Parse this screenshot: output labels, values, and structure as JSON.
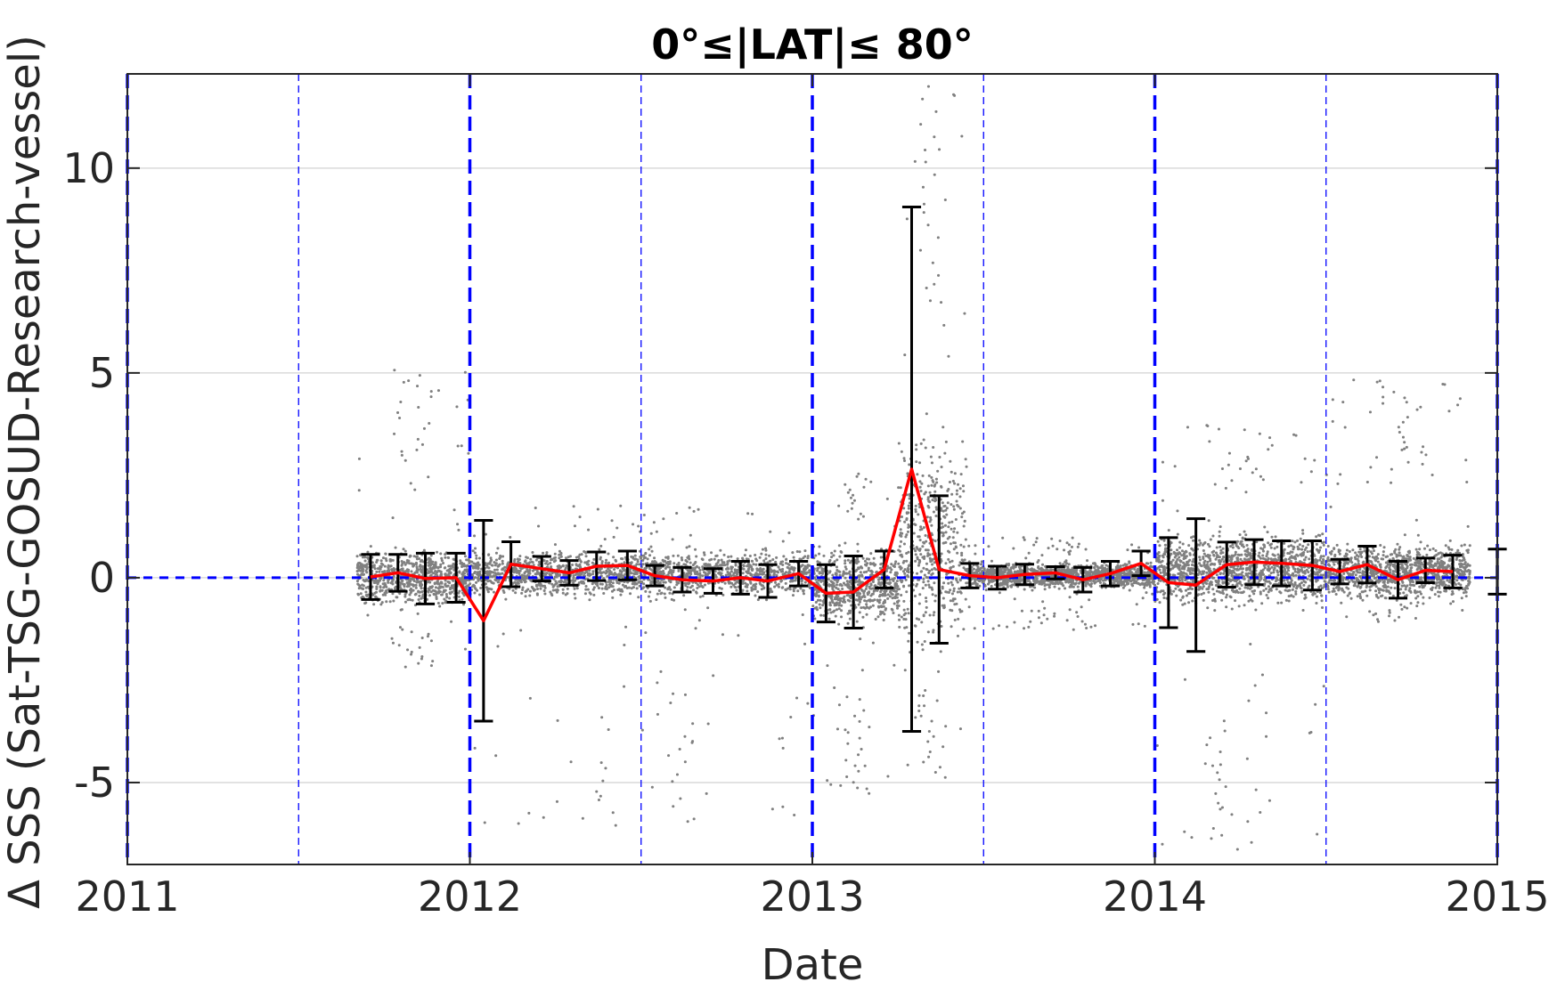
{
  "chart_data": {
    "type": "scatter",
    "title": "0°≤|LAT|≤ 80°",
    "xlabel": "Date",
    "ylabel": "Δ SSS (Sat-TSG-GOSUD-Research-vessel)",
    "xlim": [
      2011.0,
      2015.0
    ],
    "ylim": [
      -7.0,
      12.3
    ],
    "x_ticks": [
      2011,
      2012,
      2013,
      2014,
      2015
    ],
    "x_tick_labels": [
      "2011",
      "2012",
      "2013",
      "2014",
      "2015"
    ],
    "y_ticks": [
      -5,
      0,
      5,
      10
    ],
    "y_tick_labels": [
      "-5",
      "0",
      "5",
      "10"
    ],
    "grid": "horizontal",
    "zero_line": 0,
    "year_lines": [
      2011.0,
      2012.0,
      2013.0,
      2014.0,
      2015.0
    ],
    "half_year_lines": [
      2011.5,
      2012.5,
      2013.5,
      2014.5
    ],
    "colors": {
      "points": "#808080",
      "mean_line": "#ff0000",
      "errorbars": "#000000",
      "year_lines": "#0000ff",
      "zero_line": "#0000ff",
      "grid": "#d9d9d9"
    },
    "monthly_stats": [
      {
        "x": 2011.71,
        "mean": 0.02,
        "std": 0.55
      },
      {
        "x": 2011.79,
        "mean": 0.12,
        "std": 0.45
      },
      {
        "x": 2011.87,
        "mean": -0.02,
        "std": 0.62
      },
      {
        "x": 2011.96,
        "mean": 0.0,
        "std": 0.6
      },
      {
        "x": 2012.04,
        "mean": -1.05,
        "std": 2.45
      },
      {
        "x": 2012.12,
        "mean": 0.33,
        "std": 0.55
      },
      {
        "x": 2012.21,
        "mean": 0.22,
        "std": 0.3
      },
      {
        "x": 2012.29,
        "mean": 0.12,
        "std": 0.3
      },
      {
        "x": 2012.37,
        "mean": 0.28,
        "std": 0.35
      },
      {
        "x": 2012.46,
        "mean": 0.3,
        "std": 0.35
      },
      {
        "x": 2012.54,
        "mean": 0.05,
        "std": 0.25
      },
      {
        "x": 2012.62,
        "mean": -0.05,
        "std": 0.3
      },
      {
        "x": 2012.71,
        "mean": -0.08,
        "std": 0.3
      },
      {
        "x": 2012.79,
        "mean": 0.0,
        "std": 0.4
      },
      {
        "x": 2012.87,
        "mean": -0.08,
        "std": 0.4
      },
      {
        "x": 2012.96,
        "mean": 0.1,
        "std": 0.3
      },
      {
        "x": 2013.04,
        "mean": -0.38,
        "std": 0.7
      },
      {
        "x": 2013.12,
        "mean": -0.35,
        "std": 0.88
      },
      {
        "x": 2013.21,
        "mean": 0.2,
        "std": 0.45
      },
      {
        "x": 2013.29,
        "mean": 2.65,
        "std": 6.4
      },
      {
        "x": 2013.37,
        "mean": 0.2,
        "std": 1.8
      },
      {
        "x": 2013.46,
        "mean": 0.05,
        "std": 0.3
      },
      {
        "x": 2013.54,
        "mean": 0.0,
        "std": 0.28
      },
      {
        "x": 2013.62,
        "mean": 0.08,
        "std": 0.25
      },
      {
        "x": 2013.71,
        "mean": 0.12,
        "std": 0.15
      },
      {
        "x": 2013.79,
        "mean": -0.05,
        "std": 0.3
      },
      {
        "x": 2013.87,
        "mean": 0.1,
        "std": 0.3
      },
      {
        "x": 2013.96,
        "mean": 0.35,
        "std": 0.3
      },
      {
        "x": 2014.04,
        "mean": -0.12,
        "std": 1.1
      },
      {
        "x": 2014.12,
        "mean": -0.18,
        "std": 1.62
      },
      {
        "x": 2014.21,
        "mean": 0.32,
        "std": 0.55
      },
      {
        "x": 2014.29,
        "mean": 0.38,
        "std": 0.55
      },
      {
        "x": 2014.37,
        "mean": 0.35,
        "std": 0.55
      },
      {
        "x": 2014.46,
        "mean": 0.3,
        "std": 0.6
      },
      {
        "x": 2014.54,
        "mean": 0.15,
        "std": 0.3
      },
      {
        "x": 2014.62,
        "mean": 0.32,
        "std": 0.45
      },
      {
        "x": 2014.71,
        "mean": -0.05,
        "std": 0.45
      },
      {
        "x": 2014.79,
        "mean": 0.18,
        "std": 0.3
      },
      {
        "x": 2014.87,
        "mean": 0.15,
        "std": 0.4
      },
      {
        "x": 2015.0,
        "mean": 0.15,
        "std": 0.55
      }
    ],
    "scatter_clusters": [
      {
        "x0": 2011.67,
        "x1": 2012.0,
        "center": 0.0,
        "spread": 0.55,
        "extremes": [
          -2.2,
          5.2
        ]
      },
      {
        "x0": 2012.0,
        "x1": 2013.0,
        "center": 0.1,
        "spread": 0.45,
        "extremes": [
          -6.2,
          1.8
        ]
      },
      {
        "x0": 2013.0,
        "x1": 2013.25,
        "center": -0.2,
        "spread": 0.7,
        "extremes": [
          -5.4,
          2.6
        ]
      },
      {
        "x0": 2013.25,
        "x1": 2013.45,
        "center": 0.8,
        "spread": 2.2,
        "extremes": [
          -5.0,
          12.3
        ]
      },
      {
        "x0": 2013.45,
        "x1": 2014.0,
        "center": 0.05,
        "spread": 0.25,
        "extremes": [
          -1.3,
          1.0
        ]
      },
      {
        "x0": 2014.0,
        "x1": 2014.5,
        "center": 0.2,
        "spread": 0.7,
        "extremes": [
          -6.8,
          3.8
        ]
      },
      {
        "x0": 2014.5,
        "x1": 2014.92,
        "center": 0.15,
        "spread": 0.55,
        "extremes": [
          -1.1,
          4.9
        ]
      }
    ]
  }
}
